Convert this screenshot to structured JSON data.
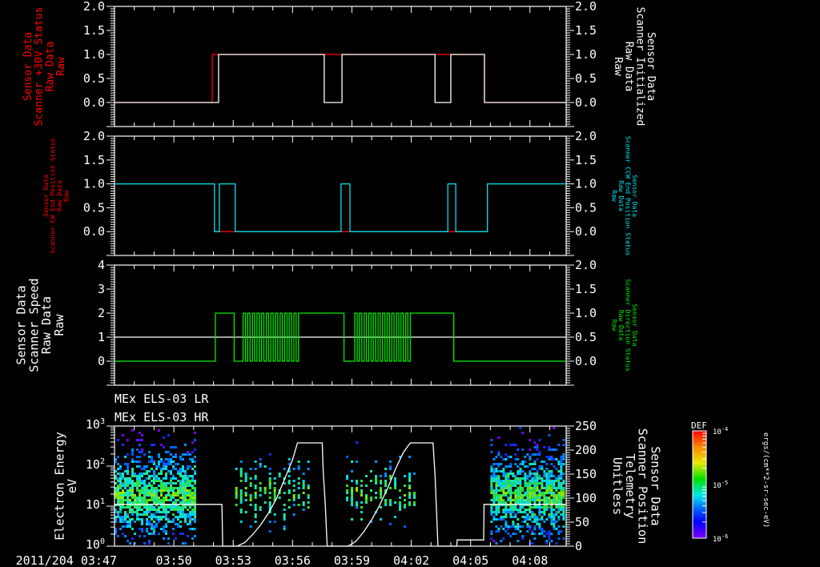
{
  "chart_data": [
    {
      "type": "line",
      "panel": 1,
      "time_unit": "minutes after 2011/204 03:47",
      "xlim": [
        0,
        22.83
      ],
      "left_ylabel": [
        "Sensor Data",
        "Scanner +30V Status",
        "Raw Data",
        "Raw"
      ],
      "right_ylabel": [
        "Sensor Data",
        "Scanner Initialized",
        "Raw Data",
        "Raw"
      ],
      "ylim_left": [
        -0.5,
        2.0
      ],
      "ylim_right": [
        -0.5,
        2.0
      ],
      "left_ticks": [
        "0.0",
        "0.5",
        "1.0",
        "1.5",
        "2.0"
      ],
      "right_ticks": [
        "0.0",
        "0.5",
        "1.0",
        "1.5",
        "2.0"
      ],
      "series": [
        {
          "name": "Scanner +30V Status",
          "axis": "left",
          "color": "#ff0000",
          "steps": [
            [
              0,
              0
            ],
            [
              4.94,
              1
            ],
            [
              18.7,
              0
            ]
          ]
        },
        {
          "name": "Scanner Initialized",
          "axis": "right",
          "color": "#ffffff",
          "steps": [
            [
              0,
              0
            ],
            [
              5.26,
              1
            ],
            [
              10.6,
              0
            ],
            [
              11.5,
              1
            ],
            [
              16.2,
              0
            ],
            [
              17.0,
              1
            ],
            [
              18.7,
              0
            ]
          ]
        }
      ]
    },
    {
      "type": "line",
      "panel": 2,
      "xlim": [
        0,
        22.83
      ],
      "left_ylabel": [
        "Sensor Data",
        "Scanner CW End Position Status",
        "Raw Data",
        "Raw"
      ],
      "right_ylabel": [
        "Sensor Data",
        "Scanner CCW End Position Status",
        "Raw Data",
        "Raw"
      ],
      "ylim_left": [
        -0.5,
        2.0
      ],
      "ylim_right": [
        -0.5,
        2.0
      ],
      "left_ticks": [
        "0.0",
        "0.5",
        "1.0",
        "1.5",
        "2.0"
      ],
      "right_ticks": [
        "0.0",
        "0.5",
        "1.0",
        "1.5",
        "2.0"
      ],
      "series": [
        {
          "name": "Scanner CW End Position Status",
          "axis": "left",
          "color": "#ff0000",
          "steps": [
            [
              5.1,
              0
            ],
            [
              18.7,
              0
            ]
          ]
        },
        {
          "name": "Scanner CCW End Position Status",
          "axis": "right",
          "color": "#00e5ee",
          "steps": [
            [
              0,
              1
            ],
            [
              5.05,
              0
            ],
            [
              5.3,
              1
            ],
            [
              6.1,
              0
            ],
            [
              11.45,
              1
            ],
            [
              11.9,
              0
            ],
            [
              16.85,
              1
            ],
            [
              17.25,
              0
            ],
            [
              18.85,
              1
            ]
          ]
        }
      ]
    },
    {
      "type": "line",
      "panel": 3,
      "xlim": [
        0,
        22.83
      ],
      "left_ylabel": [
        "Sensor Data",
        "Scanner Speed",
        "Raw Data",
        "Raw"
      ],
      "right_ylabel": [
        "Sensor Data",
        "Scanner Direction Status",
        "Raw Data",
        "Raw"
      ],
      "ylim_left": [
        -1,
        4
      ],
      "ylim_right": [
        -0.5,
        2.0
      ],
      "left_ticks": [
        "0",
        "1",
        "2",
        "3",
        "4"
      ],
      "right_ticks": [
        "0.0",
        "0.5",
        "1.0",
        "1.5",
        "2.0"
      ],
      "series": [
        {
          "name": "Scanner Speed",
          "axis": "left",
          "color": "#ffffff",
          "steps": [
            [
              0,
              1
            ]
          ]
        },
        {
          "name": "Scanner Direction Status",
          "axis": "right",
          "color": "#00ee00",
          "steps": [
            [
              0,
              0
            ],
            [
              5.1,
              1
            ],
            [
              6.05,
              0
            ],
            [
              6.5,
              1
            ],
            [
              6.62,
              0
            ],
            [
              6.73,
              1
            ],
            [
              6.85,
              0
            ],
            [
              6.97,
              1
            ],
            [
              7.08,
              0
            ],
            [
              7.2,
              1
            ],
            [
              7.32,
              0
            ],
            [
              7.43,
              1
            ],
            [
              7.55,
              0
            ],
            [
              7.67,
              1
            ],
            [
              7.78,
              0
            ],
            [
              7.9,
              1
            ],
            [
              8.02,
              0
            ],
            [
              8.13,
              1
            ],
            [
              8.25,
              0
            ],
            [
              8.37,
              1
            ],
            [
              8.48,
              0
            ],
            [
              8.6,
              1
            ],
            [
              8.72,
              0
            ],
            [
              8.83,
              1
            ],
            [
              8.95,
              0
            ],
            [
              9.07,
              1
            ],
            [
              9.18,
              0
            ],
            [
              9.3,
              1
            ],
            [
              11.6,
              0
            ],
            [
              12.15,
              1
            ],
            [
              12.27,
              0
            ],
            [
              12.38,
              1
            ],
            [
              12.5,
              0
            ],
            [
              12.62,
              1
            ],
            [
              12.73,
              0
            ],
            [
              12.85,
              1
            ],
            [
              12.97,
              0
            ],
            [
              13.08,
              1
            ],
            [
              13.2,
              0
            ],
            [
              13.32,
              1
            ],
            [
              13.43,
              0
            ],
            [
              13.55,
              1
            ],
            [
              13.67,
              0
            ],
            [
              13.78,
              1
            ],
            [
              13.9,
              0
            ],
            [
              14.02,
              1
            ],
            [
              14.13,
              0
            ],
            [
              14.25,
              1
            ],
            [
              14.37,
              0
            ],
            [
              14.48,
              1
            ],
            [
              14.6,
              0
            ],
            [
              14.72,
              1
            ],
            [
              14.83,
              0
            ],
            [
              14.95,
              1
            ],
            [
              17.15,
              0
            ]
          ]
        }
      ]
    },
    {
      "type": "heatmap",
      "panel": 4,
      "xlim": [
        0,
        22.83
      ],
      "titles": [
        "MEx ELS-03 LR",
        "MEx ELS-03 HR"
      ],
      "left_ylabel": [
        "Electron Energy",
        "eV"
      ],
      "right_ylabel": [
        "Sensor Data",
        "Scanner Position",
        "Telemetry",
        "Unitless"
      ],
      "ylim_left_log10": [
        0,
        3
      ],
      "ylim_right": [
        0,
        250
      ],
      "left_ticks": [
        {
          "base": "10",
          "exp": "0"
        },
        {
          "base": "10",
          "exp": "1"
        },
        {
          "base": "10",
          "exp": "2"
        },
        {
          "base": "10",
          "exp": "3"
        }
      ],
      "right_ticks": [
        "0",
        "50",
        "100",
        "150",
        "200",
        "250"
      ],
      "spectrogram_regions": [
        {
          "t": [
            0,
            4.2
          ],
          "log_energy_peak": 1.3,
          "density": 0.85,
          "striped": false
        },
        {
          "t": [
            6.1,
            9.9
          ],
          "log_energy_peak": 1.4,
          "density": 0.55,
          "striped": true
        },
        {
          "t": [
            11.7,
            15.3
          ],
          "log_energy_peak": 1.4,
          "density": 0.5,
          "striped": true
        },
        {
          "t": [
            19.0,
            22.83
          ],
          "log_energy_peak": 1.3,
          "density": 0.85,
          "striped": false
        }
      ],
      "series": [
        {
          "name": "Scanner Position",
          "axis": "right",
          "color": "#ffffff",
          "points": [
            [
              0,
              87
            ],
            [
              5.43,
              87
            ],
            [
              5.47,
              0
            ],
            [
              6.2,
              0
            ],
            [
              6.6,
              8
            ],
            [
              7.0,
              25
            ],
            [
              7.4,
              45
            ],
            [
              7.8,
              70
            ],
            [
              8.2,
              100
            ],
            [
              8.6,
              140
            ],
            [
              9.0,
              180
            ],
            [
              9.25,
              215
            ],
            [
              10.5,
              215
            ],
            [
              10.55,
              155
            ],
            [
              10.65,
              90
            ],
            [
              10.75,
              0
            ],
            [
              11.8,
              0
            ],
            [
              12.2,
              10
            ],
            [
              12.6,
              30
            ],
            [
              13.0,
              55
            ],
            [
              13.4,
              85
            ],
            [
              13.8,
              120
            ],
            [
              14.2,
              160
            ],
            [
              14.6,
              195
            ],
            [
              14.95,
              215
            ],
            [
              16.1,
              215
            ],
            [
              16.2,
              150
            ],
            [
              16.35,
              0
            ],
            [
              17.3,
              0
            ],
            [
              17.32,
              13
            ],
            [
              18.66,
              13
            ],
            [
              18.68,
              87
            ],
            [
              22.83,
              87
            ]
          ]
        }
      ],
      "colorbar": {
        "title": "DEF",
        "tick_labels": [
          {
            "base": "10",
            "exp": "-4"
          },
          {
            "base": "10",
            "exp": "-5"
          },
          {
            "base": "10",
            "exp": "-6"
          }
        ],
        "units": "ergs/(cm**2-sr-sec-eV)",
        "colors": [
          "#ff0000",
          "#ff8800",
          "#e8e800",
          "#00e000",
          "#00e8e8",
          "#0050ff",
          "#0000ff",
          "#8000ff"
        ]
      }
    }
  ],
  "time_axis": {
    "first_label": "2011/204 03:47",
    "labels": [
      {
        "t": 3,
        "text": "03:50"
      },
      {
        "t": 6,
        "text": "03:53"
      },
      {
        "t": 9,
        "text": "03:56"
      },
      {
        "t": 12,
        "text": "03:59"
      },
      {
        "t": 15,
        "text": "04:02"
      },
      {
        "t": 18,
        "text": "04:05"
      },
      {
        "t": 21,
        "text": "04:08"
      }
    ]
  }
}
